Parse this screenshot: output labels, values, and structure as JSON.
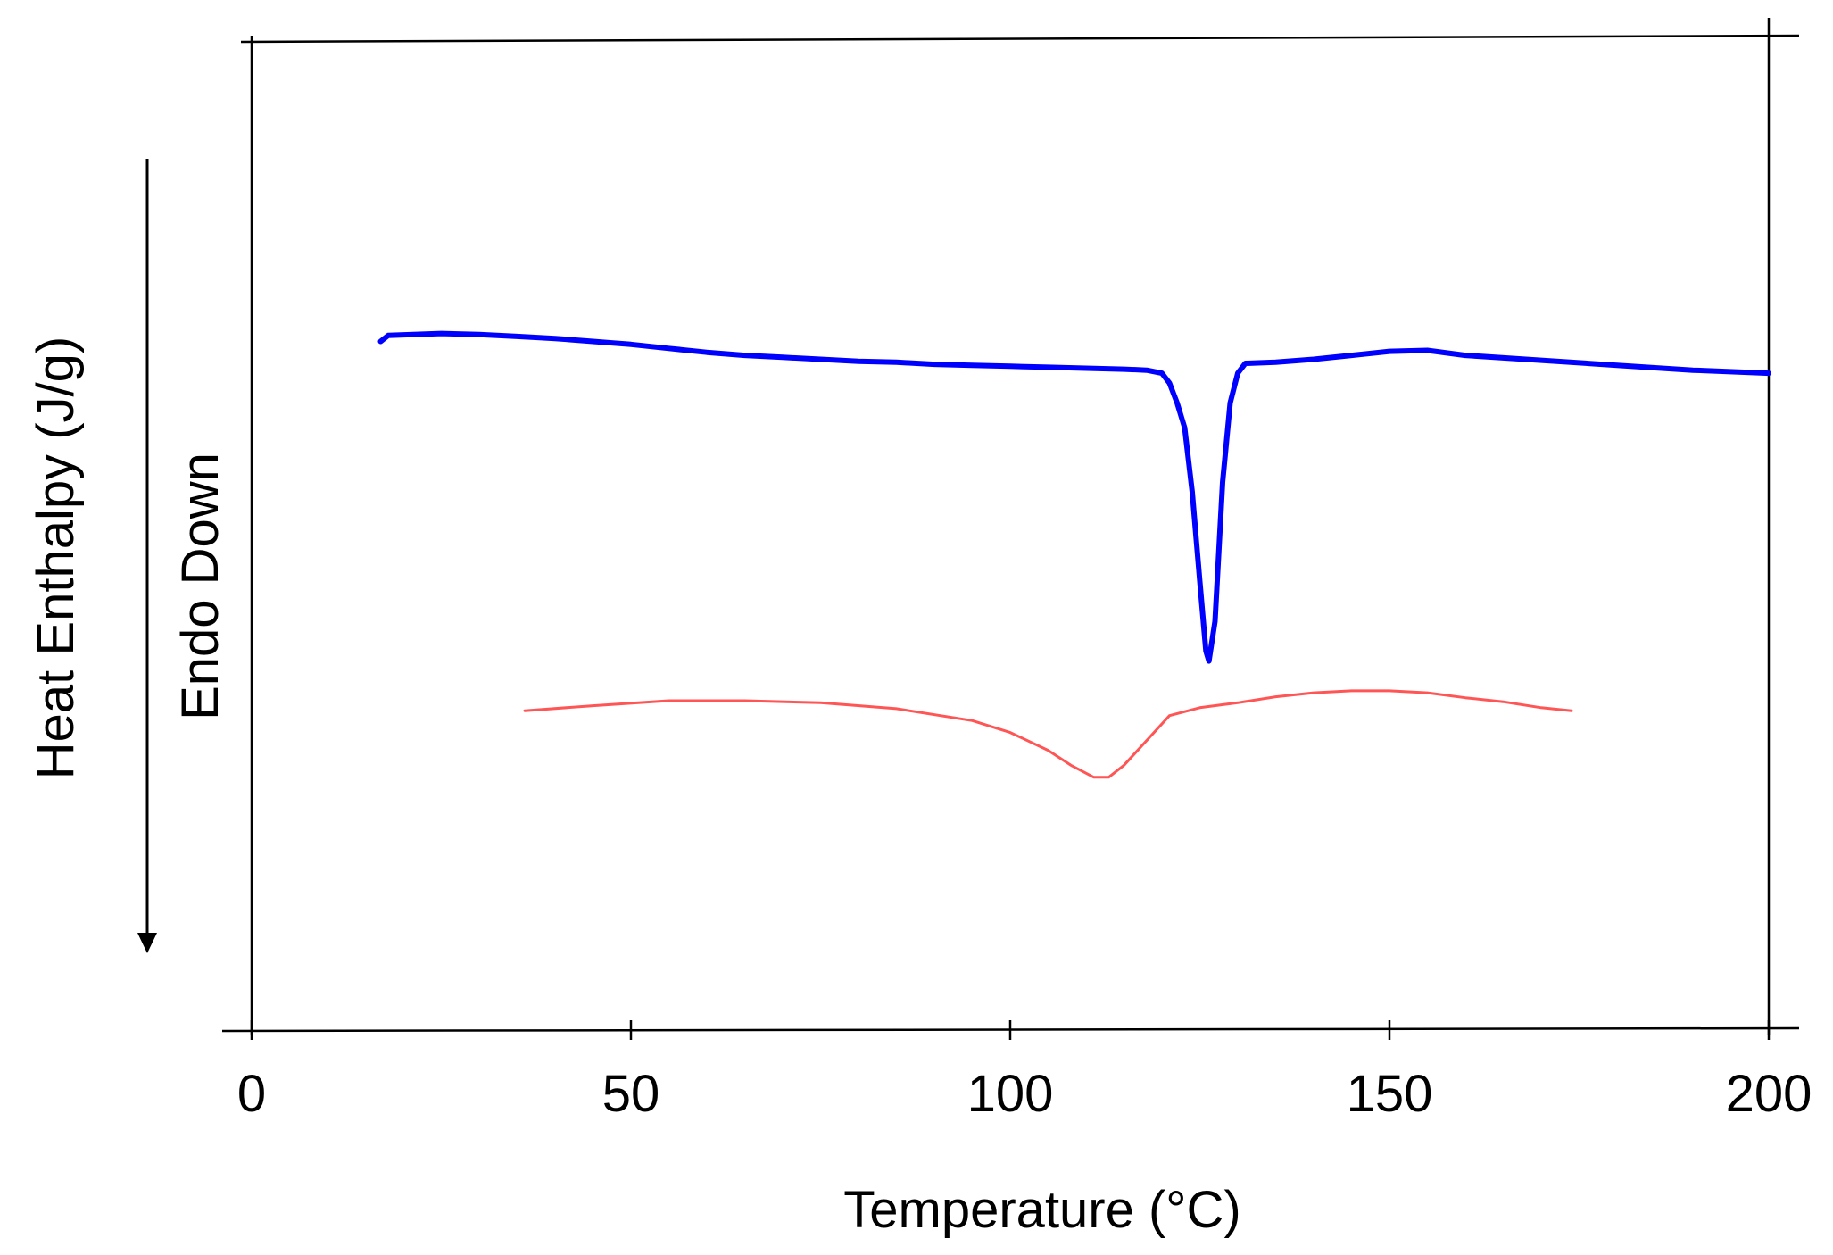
{
  "chart_data": {
    "type": "line",
    "title": "",
    "xlabel": "Temperature (°C)",
    "ylabel": "Heat Enthalpy (J/g)",
    "annotation": "Endo Down",
    "xlim": [
      0,
      200
    ],
    "xticks": [
      0,
      50,
      100,
      150,
      200
    ],
    "ylim": [
      0,
      100
    ],
    "grid": false,
    "legend": "none",
    "series": [
      {
        "color": "#0000ff",
        "points": [
          [
            17,
            69.2
          ],
          [
            18,
            69.8
          ],
          [
            25,
            70.0
          ],
          [
            30,
            69.9
          ],
          [
            35,
            69.7
          ],
          [
            40,
            69.5
          ],
          [
            45,
            69.2
          ],
          [
            50,
            68.9
          ],
          [
            55,
            68.5
          ],
          [
            60,
            68.1
          ],
          [
            65,
            67.8
          ],
          [
            70,
            67.6
          ],
          [
            75,
            67.4
          ],
          [
            80,
            67.2
          ],
          [
            85,
            67.1
          ],
          [
            90,
            66.9
          ],
          [
            95,
            66.8
          ],
          [
            100,
            66.7
          ],
          [
            105,
            66.6
          ],
          [
            110,
            66.5
          ],
          [
            115,
            66.4
          ],
          [
            118,
            66.3
          ],
          [
            120,
            66.0
          ],
          [
            121,
            65.0
          ],
          [
            122,
            63.0
          ],
          [
            123,
            60.5
          ],
          [
            124,
            54.0
          ],
          [
            125,
            45.0
          ],
          [
            125.8,
            38.0
          ],
          [
            126.2,
            37.0
          ],
          [
            127,
            41.0
          ],
          [
            128,
            55.0
          ],
          [
            129,
            63.0
          ],
          [
            130,
            66.0
          ],
          [
            131,
            67.0
          ],
          [
            135,
            67.1
          ],
          [
            140,
            67.4
          ],
          [
            145,
            67.8
          ],
          [
            150,
            68.2
          ],
          [
            155,
            68.3
          ],
          [
            160,
            67.8
          ],
          [
            170,
            67.3
          ],
          [
            180,
            66.8
          ],
          [
            190,
            66.3
          ],
          [
            200,
            66.0
          ]
        ]
      },
      {
        "color": "#ff5555",
        "points": [
          [
            36,
            32.0
          ],
          [
            45,
            32.5
          ],
          [
            55,
            33.0
          ],
          [
            65,
            33.0
          ],
          [
            75,
            32.8
          ],
          [
            85,
            32.2
          ],
          [
            95,
            31.0
          ],
          [
            100,
            29.8
          ],
          [
            105,
            28.0
          ],
          [
            108,
            26.5
          ],
          [
            111,
            25.3
          ],
          [
            113,
            25.3
          ],
          [
            115,
            26.5
          ],
          [
            118,
            29.0
          ],
          [
            121,
            31.5
          ],
          [
            125,
            32.3
          ],
          [
            130,
            32.8
          ],
          [
            135,
            33.4
          ],
          [
            140,
            33.8
          ],
          [
            145,
            34.0
          ],
          [
            150,
            34.0
          ],
          [
            155,
            33.8
          ],
          [
            160,
            33.3
          ],
          [
            165,
            32.9
          ],
          [
            170,
            32.3
          ],
          [
            174,
            32.0
          ]
        ]
      }
    ]
  }
}
